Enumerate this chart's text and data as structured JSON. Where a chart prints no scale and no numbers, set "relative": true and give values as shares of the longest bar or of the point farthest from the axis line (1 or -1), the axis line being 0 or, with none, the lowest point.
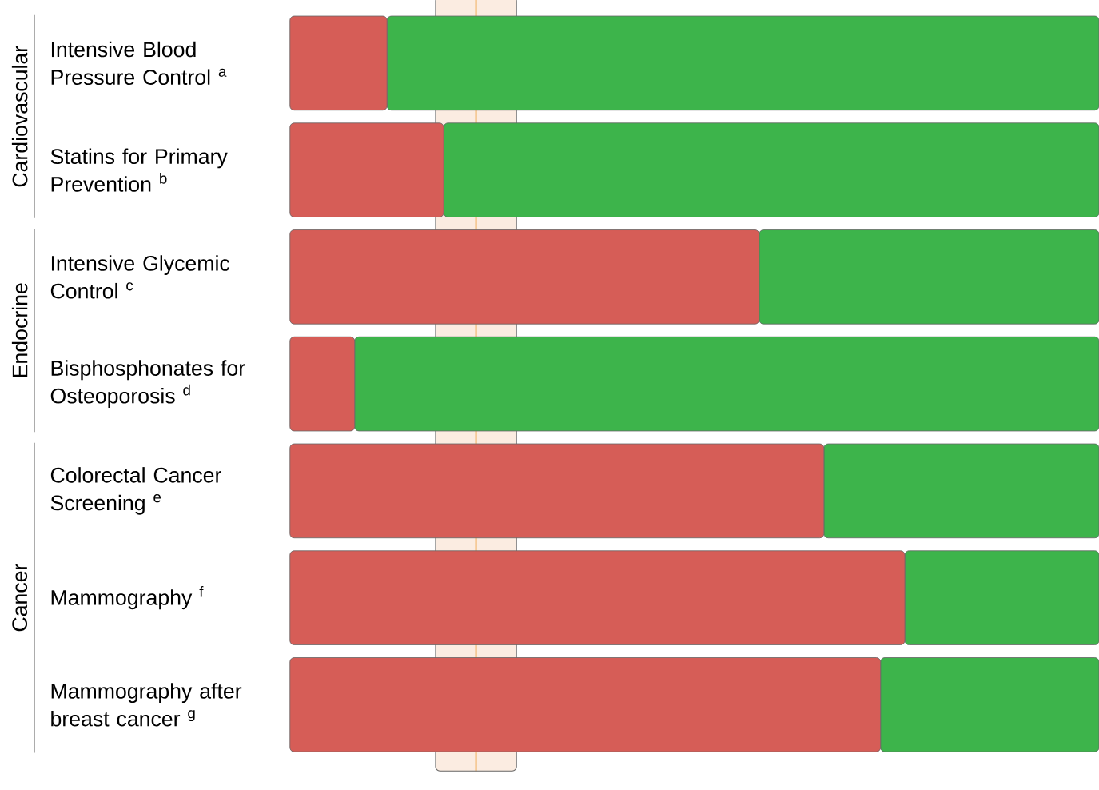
{
  "chart_data": {
    "type": "bar",
    "orientation": "horizontal",
    "stacked": true,
    "relative": true,
    "categories": [
      "Intensive Blood Pressure Control $^{a}$",
      "Statins for Primary Prevention $^{b}$",
      "Intensive Glycemic Control $^{c}$",
      "Bisphosphonates for Osteoporosis $^{d}$",
      "Colorectal Cancer Screening $^{e}$",
      "Mammography $^{f}$",
      "Mammography after breast cancer $^{g}$"
    ],
    "series": [
      {
        "color": "#d65d57",
        "values": [
          0.12,
          0.19,
          0.58,
          0.08,
          0.66,
          0.76,
          0.73
        ]
      },
      {
        "color": "#3db44b",
        "values": [
          0.88,
          0.81,
          0.42,
          0.92,
          0.34,
          0.24,
          0.27
        ]
      }
    ],
    "annotations": [
      "Cardiovascular",
      "Endocrine",
      "Cancer"
    ],
    "bands": [
      {
        "axis": "x",
        "from": 0.18,
        "to": 0.28,
        "color": "#f6d5bd"
      }
    ],
    "ref_lines": [
      {
        "axis": "x",
        "value": 0.23,
        "color": "#f0a030"
      }
    ]
  }
}
